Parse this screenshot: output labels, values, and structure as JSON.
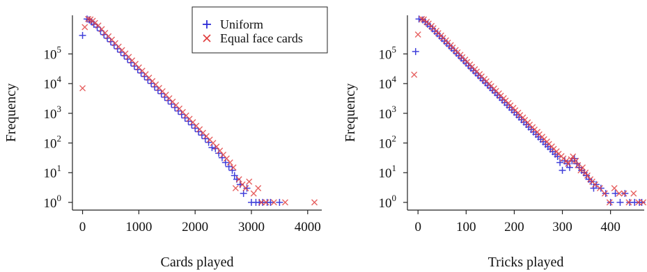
{
  "colors": {
    "uniform": "#2b2bd6",
    "equal_face_cards": "#e03a3a",
    "axis": "#222222"
  },
  "legend": {
    "placement": "top-right",
    "entries": [
      {
        "name": "Uniform",
        "marker": "plus",
        "color_key": "uniform"
      },
      {
        "name": "Equal face cards",
        "marker": "cross",
        "color_key": "equal_face_cards"
      }
    ]
  },
  "chart_data": [
    {
      "type": "scatter",
      "title": "",
      "xlabel": "Cards played",
      "ylabel": "Frequency",
      "yscale": "log",
      "xlim": [
        -180,
        4250
      ],
      "ylim": [
        0.55,
        2000000
      ],
      "xticks": [
        0,
        1000,
        2000,
        3000,
        4000
      ],
      "yticks": [
        1,
        10,
        100,
        1000,
        10000,
        100000
      ],
      "ytick_labels": [
        {
          "base": "10",
          "exp": "0"
        },
        {
          "base": "10",
          "exp": "1"
        },
        {
          "base": "10",
          "exp": "2"
        },
        {
          "base": "10",
          "exp": "3"
        },
        {
          "base": "10",
          "exp": "4"
        },
        {
          "base": "10",
          "exp": "5"
        }
      ],
      "grid": false,
      "series": [
        {
          "name": "Uniform",
          "marker": "plus",
          "x": [
            0,
            80,
            120,
            160,
            200,
            260,
            320,
            380,
            440,
            500,
            560,
            620,
            680,
            740,
            800,
            860,
            920,
            980,
            1040,
            1100,
            1160,
            1220,
            1280,
            1340,
            1400,
            1460,
            1520,
            1580,
            1640,
            1700,
            1760,
            1820,
            1880,
            1940,
            2000,
            2060,
            2120,
            2180,
            2240,
            2300,
            2360,
            2420,
            2480,
            2540,
            2600,
            2660,
            2700,
            2740,
            2800,
            2860,
            2920,
            3000,
            3080,
            3140,
            3200,
            3280,
            3340,
            3500
          ],
          "y": [
            420000,
            1500000,
            1400000,
            1200000,
            1000000,
            800000,
            600000,
            450000,
            340000,
            260000,
            200000,
            150000,
            115000,
            88000,
            67000,
            51000,
            39000,
            30000,
            23000,
            17500,
            13400,
            10200,
            7800,
            6000,
            4600,
            3500,
            2700,
            2050,
            1570,
            1200,
            920,
            700,
            540,
            410,
            315,
            240,
            185,
            140,
            105,
            70,
            65,
            45,
            32,
            22,
            16,
            12,
            8,
            6,
            4,
            2,
            3,
            1,
            1,
            1,
            1,
            1,
            1,
            1
          ]
        },
        {
          "name": "Equal face cards",
          "marker": "cross",
          "x": [
            0,
            40,
            100,
            140,
            180,
            220,
            280,
            340,
            400,
            460,
            520,
            580,
            640,
            700,
            760,
            820,
            880,
            940,
            1000,
            1060,
            1120,
            1180,
            1240,
            1300,
            1360,
            1420,
            1480,
            1540,
            1600,
            1660,
            1720,
            1780,
            1840,
            1900,
            1960,
            2020,
            2080,
            2140,
            2200,
            2260,
            2320,
            2380,
            2440,
            2500,
            2560,
            2620,
            2680,
            2720,
            2780,
            2840,
            2900,
            2960,
            3040,
            3120,
            3180,
            3260,
            3400,
            3600,
            4120
          ],
          "y": [
            7000,
            800000,
            1500000,
            1450000,
            1300000,
            1100000,
            900000,
            680000,
            510000,
            390000,
            300000,
            230000,
            175000,
            134000,
            103000,
            79000,
            60000,
            46000,
            35000,
            27000,
            20700,
            15800,
            12100,
            9300,
            7100,
            5500,
            4200,
            3200,
            2450,
            1880,
            1440,
            1100,
            840,
            650,
            500,
            380,
            290,
            220,
            170,
            130,
            100,
            75,
            55,
            40,
            30,
            22,
            15,
            3,
            6,
            4,
            3,
            5,
            2,
            3,
            1,
            1,
            1,
            1,
            1
          ]
        }
      ]
    },
    {
      "type": "scatter",
      "title": "",
      "xlabel": "Tricks played",
      "ylabel": "Frequency",
      "yscale": "log",
      "xlim": [
        -22,
        470
      ],
      "ylim": [
        0.55,
        2000000
      ],
      "xticks": [
        0,
        100,
        200,
        300,
        400
      ],
      "yticks": [
        1,
        10,
        100,
        1000,
        10000,
        100000
      ],
      "ytick_labels": [
        {
          "base": "10",
          "exp": "0"
        },
        {
          "base": "10",
          "exp": "1"
        },
        {
          "base": "10",
          "exp": "2"
        },
        {
          "base": "10",
          "exp": "3"
        },
        {
          "base": "10",
          "exp": "4"
        },
        {
          "base": "10",
          "exp": "5"
        }
      ],
      "grid": false,
      "series": [
        {
          "name": "Uniform",
          "marker": "plus",
          "x": [
            -5,
            2,
            10,
            15,
            20,
            25,
            30,
            35,
            40,
            45,
            50,
            55,
            60,
            65,
            70,
            75,
            80,
            85,
            90,
            95,
            100,
            105,
            110,
            115,
            120,
            125,
            130,
            135,
            140,
            145,
            150,
            155,
            160,
            165,
            170,
            175,
            180,
            185,
            190,
            195,
            200,
            205,
            210,
            215,
            220,
            225,
            230,
            235,
            240,
            245,
            250,
            255,
            260,
            265,
            270,
            275,
            280,
            285,
            290,
            295,
            300,
            305,
            310,
            315,
            320,
            325,
            330,
            335,
            340,
            345,
            350,
            355,
            360,
            365,
            370,
            380,
            390,
            400,
            410,
            420,
            430,
            440,
            450,
            460,
            465
          ],
          "y": [
            120000,
            1500000,
            1400000,
            1200000,
            1000000,
            850000,
            700000,
            580000,
            480000,
            400000,
            330000,
            270000,
            225000,
            185000,
            155000,
            128000,
            105000,
            87000,
            72000,
            59000,
            49000,
            40000,
            33000,
            27500,
            22700,
            18800,
            15500,
            12800,
            10600,
            8800,
            7250,
            6000,
            4950,
            4100,
            3400,
            2800,
            2300,
            1900,
            1580,
            1300,
            1080,
            890,
            740,
            610,
            505,
            420,
            345,
            285,
            235,
            195,
            160,
            133,
            110,
            90,
            75,
            62,
            51,
            42,
            35,
            22,
            12,
            25,
            20,
            15,
            25,
            30,
            20,
            15,
            12,
            10,
            8,
            6,
            5,
            3,
            4,
            3,
            2,
            1,
            2,
            1,
            2,
            1,
            1,
            1,
            1
          ]
        },
        {
          "name": "Equal face cards",
          "marker": "cross",
          "x": [
            -8,
            0,
            8,
            12,
            18,
            22,
            28,
            32,
            38,
            42,
            48,
            52,
            58,
            62,
            68,
            72,
            78,
            82,
            88,
            92,
            98,
            102,
            108,
            112,
            118,
            122,
            128,
            132,
            138,
            142,
            148,
            152,
            158,
            162,
            168,
            172,
            178,
            182,
            188,
            192,
            198,
            202,
            208,
            212,
            218,
            222,
            228,
            232,
            238,
            242,
            248,
            252,
            258,
            262,
            268,
            272,
            278,
            282,
            288,
            292,
            298,
            302,
            308,
            312,
            318,
            322,
            328,
            332,
            338,
            342,
            348,
            352,
            358,
            362,
            368,
            378,
            388,
            398,
            408,
            418,
            428,
            438,
            448,
            458,
            468
          ],
          "y": [
            20000,
            450000,
            1500000,
            1450000,
            1200000,
            1050000,
            870000,
            730000,
            600000,
            500000,
            415000,
            345000,
            285000,
            237000,
            197000,
            163000,
            135000,
            112000,
            93000,
            77000,
            64000,
            53000,
            44000,
            36500,
            30300,
            25100,
            20800,
            17300,
            14300,
            11900,
            9850,
            8170,
            6780,
            5620,
            4660,
            3870,
            3210,
            2660,
            2210,
            1830,
            1520,
            1260,
            1040,
            865,
            718,
            595,
            494,
            410,
            340,
            282,
            234,
            194,
            161,
            133,
            111,
            92,
            76,
            63,
            52,
            43,
            36,
            30,
            25,
            20,
            28,
            35,
            25,
            18,
            12,
            15,
            10,
            8,
            6,
            5,
            4,
            3,
            2,
            1,
            3,
            2,
            2,
            1,
            2,
            1,
            1
          ]
        }
      ]
    }
  ]
}
